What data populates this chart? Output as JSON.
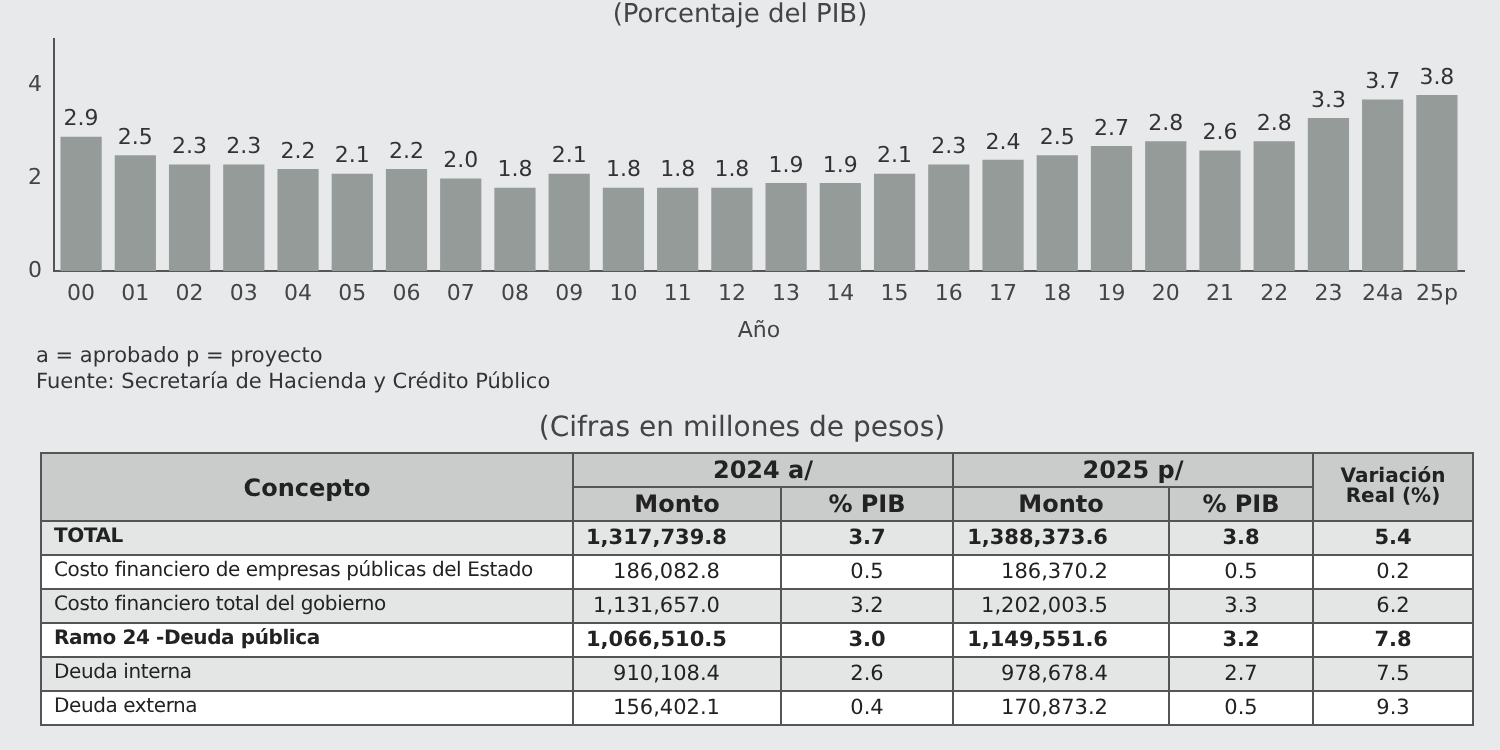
{
  "chart_data": [
    {
      "type": "bar",
      "subtitle": "(Porcentaje del PIB)",
      "xlabel": "Año",
      "categories": [
        "00",
        "01",
        "02",
        "03",
        "04",
        "05",
        "06",
        "07",
        "08",
        "09",
        "10",
        "11",
        "12",
        "13",
        "14",
        "15",
        "16",
        "17",
        "18",
        "19",
        "20",
        "21",
        "22",
        "23",
        "24a",
        "25p"
      ],
      "values": [
        2.9,
        2.5,
        2.3,
        2.3,
        2.2,
        2.1,
        2.2,
        2.0,
        1.8,
        2.1,
        1.8,
        1.8,
        1.8,
        1.9,
        1.9,
        2.1,
        2.3,
        2.4,
        2.5,
        2.7,
        2.8,
        2.6,
        2.8,
        3.3,
        3.7,
        3.8
      ],
      "value_labels": [
        "2.9",
        "2.5",
        "2.3",
        "2.3",
        "2.2",
        "2.1",
        "2.2",
        "2.0",
        "1.8",
        "2.1",
        "1.8",
        "1.8",
        "1.8",
        "1.9",
        "1.9",
        "2.1",
        "2.3",
        "2.4",
        "2.5",
        "2.7",
        "2.8",
        "2.6",
        "2.8",
        "3.3",
        "3.7",
        "3.8"
      ],
      "color": "#949b99",
      "ylim": [
        0,
        5
      ],
      "yticks": [
        0,
        2,
        4
      ],
      "grid": false,
      "legend": false,
      "annotations": [
        "a = aprobado  p = proyecto",
        "Fuente: Secretaría de Hacienda y Crédito Público"
      ]
    },
    {
      "type": "other",
      "title": "(Cifras en millones de pesos)",
      "annotations": [
        "Concepto",
        "2024 a/",
        "2025 p/"
      ],
      "categories": [
        "Monto",
        "% PIB",
        "Monto",
        "% PIB",
        "Variación Real (%)"
      ],
      "y_categories": [
        "TOTAL",
        "Costo financiero de empresas públicas del Estado",
        "Costo financiero total del gobierno",
        "Ramo 24 -Deuda pública",
        "Deuda interna",
        "Deuda externa"
      ],
      "cell_labels": [
        [
          "1,317,739.8",
          "3.7",
          "1,388,373.6",
          "3.8",
          "5.4"
        ],
        [
          "186,082.8",
          "0.5",
          "186,370.2",
          "0.5",
          "0.2"
        ],
        [
          "1,131,657.0",
          "3.2",
          "1,202,003.5",
          "3.3",
          "6.2"
        ],
        [
          "1,066,510.5",
          "3.0",
          "1,149,551.6",
          "3.2",
          "7.8"
        ],
        [
          "910,108.4",
          "2.6",
          "978,678.4",
          "2.7",
          "7.5"
        ],
        [
          "156,402.1",
          "0.4",
          "170,873.2",
          "0.5",
          "9.3"
        ]
      ]
    }
  ]
}
